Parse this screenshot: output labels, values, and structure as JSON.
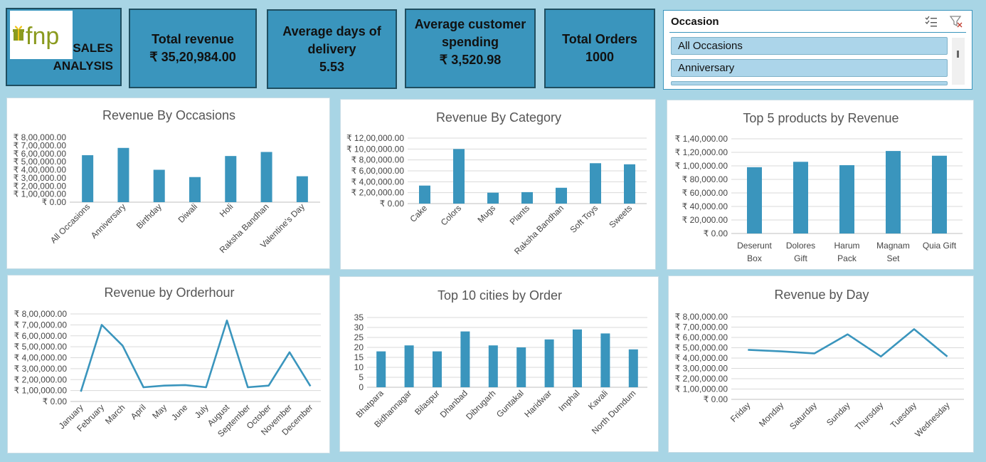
{
  "header": {
    "logo_text": "fnp",
    "title_line1": "SALES",
    "title_line2": "ANALYSIS"
  },
  "kpis": [
    {
      "label": "Total revenue",
      "value": "₹ 35,20,984.00"
    },
    {
      "label": "Average days of delivery",
      "value": "5.53"
    },
    {
      "label": "Average customer spending",
      "value": "₹ 3,520.98"
    },
    {
      "label": "Total Orders",
      "value": "1000"
    }
  ],
  "slicer": {
    "title": "Occasion",
    "items": [
      "All Occasions",
      "Anniversary"
    ],
    "icons": [
      "multi-select-icon",
      "clear-filter-icon"
    ]
  },
  "colors": {
    "bar": "#3a95bd",
    "line": "#3a95bd",
    "kpi": "#3a95bd",
    "background": "#a8d5e5"
  },
  "chart_data": [
    {
      "id": "occ",
      "type": "bar",
      "title": "Revenue By Occasions",
      "categories": [
        "All Occasions",
        "Anniversary",
        "Birthday",
        "Diwali",
        "Holi",
        "Raksha Bandhan",
        "Valentine's Day"
      ],
      "values": [
        580000,
        670000,
        400000,
        310000,
        570000,
        620000,
        320000
      ],
      "ylim": [
        0,
        800000
      ],
      "yticks": [
        "₹ 0.00",
        "₹ 1,00,000.00",
        "₹ 2,00,000.00",
        "₹ 3,00,000.00",
        "₹ 4,00,000.00",
        "₹ 5,00,000.00",
        "₹ 6,00,000.00",
        "₹ 7,00,000.00",
        "₹ 8,00,000.00"
      ],
      "grid": false
    },
    {
      "id": "cat",
      "type": "bar",
      "title": "Revenue By Category",
      "categories": [
        "Cake",
        "Colors",
        "Mugs",
        "Plants",
        "Raksha Bandhan",
        "Soft Toys",
        "Sweets"
      ],
      "values": [
        330000,
        1000000,
        200000,
        210000,
        290000,
        740000,
        720000
      ],
      "ylim": [
        0,
        1200000
      ],
      "yticks": [
        "₹ 0.00",
        "₹ 2,00,000.00",
        "₹ 4,00,000.00",
        "₹ 6,00,000.00",
        "₹ 8,00,000.00",
        "₹ 10,00,000.00",
        "₹ 12,00,000.00"
      ],
      "grid": true
    },
    {
      "id": "top5",
      "type": "bar",
      "title": "Top 5 products by Revenue",
      "categories": [
        [
          "Deserunt",
          "Box"
        ],
        [
          "Dolores",
          "Gift"
        ],
        [
          "Harum",
          "Pack"
        ],
        [
          "Magnam",
          "Set"
        ],
        [
          "Quia Gift"
        ]
      ],
      "values": [
        98000,
        106000,
        101000,
        122000,
        115000
      ],
      "ylim": [
        0,
        140000
      ],
      "yticks": [
        "₹ 0.00",
        "₹ 20,000.00",
        "₹ 40,000.00",
        "₹ 60,000.00",
        "₹ 80,000.00",
        "₹ 1,00,000.00",
        "₹ 1,20,000.00",
        "₹ 1,40,000.00"
      ],
      "grid": true
    },
    {
      "id": "hour",
      "type": "line",
      "title": "Revenue by Orderhour",
      "categories": [
        "January",
        "February",
        "March",
        "April",
        "May",
        "June",
        "July",
        "August",
        "September",
        "October",
        "November",
        "December"
      ],
      "values": [
        90000,
        700000,
        510000,
        130000,
        145000,
        150000,
        130000,
        740000,
        130000,
        145000,
        450000,
        140000
      ],
      "ylim": [
        0,
        800000
      ],
      "yticks": [
        "₹ 0.00",
        "₹ 1,00,000.00",
        "₹ 2,00,000.00",
        "₹ 3,00,000.00",
        "₹ 4,00,000.00",
        "₹ 5,00,000.00",
        "₹ 6,00,000.00",
        "₹ 7,00,000.00",
        "₹ 8,00,000.00"
      ],
      "grid": true
    },
    {
      "id": "cities",
      "type": "bar",
      "title": "Top 10 cities by Order",
      "categories": [
        "Bhatpara",
        "Bidhannagar",
        "Bilaspur",
        "Dhanbad",
        "Dibrugarh",
        "Guntakal",
        "Haridwar",
        "Imphal",
        "Kavali",
        "North Dumdum"
      ],
      "values": [
        18,
        21,
        18,
        28,
        21,
        20,
        24,
        29,
        27,
        19
      ],
      "ylim": [
        0,
        35
      ],
      "yticks": [
        "0",
        "5",
        "10",
        "15",
        "20",
        "25",
        "30",
        "35"
      ],
      "grid": true
    },
    {
      "id": "day",
      "type": "line",
      "title": "Revenue by Day",
      "categories": [
        "Friday",
        "Monday",
        "Saturday",
        "Sunday",
        "Thursday",
        "Tuesday",
        "Wednesday"
      ],
      "values": [
        480000,
        465000,
        445000,
        630000,
        415000,
        680000,
        415000
      ],
      "ylim": [
        0,
        800000
      ],
      "yticks": [
        "₹ 0.00",
        "₹ 1,00,000.00",
        "₹ 2,00,000.00",
        "₹ 3,00,000.00",
        "₹ 4,00,000.00",
        "₹ 5,00,000.00",
        "₹ 6,00,000.00",
        "₹ 7,00,000.00",
        "₹ 8,00,000.00"
      ],
      "grid": true
    }
  ]
}
